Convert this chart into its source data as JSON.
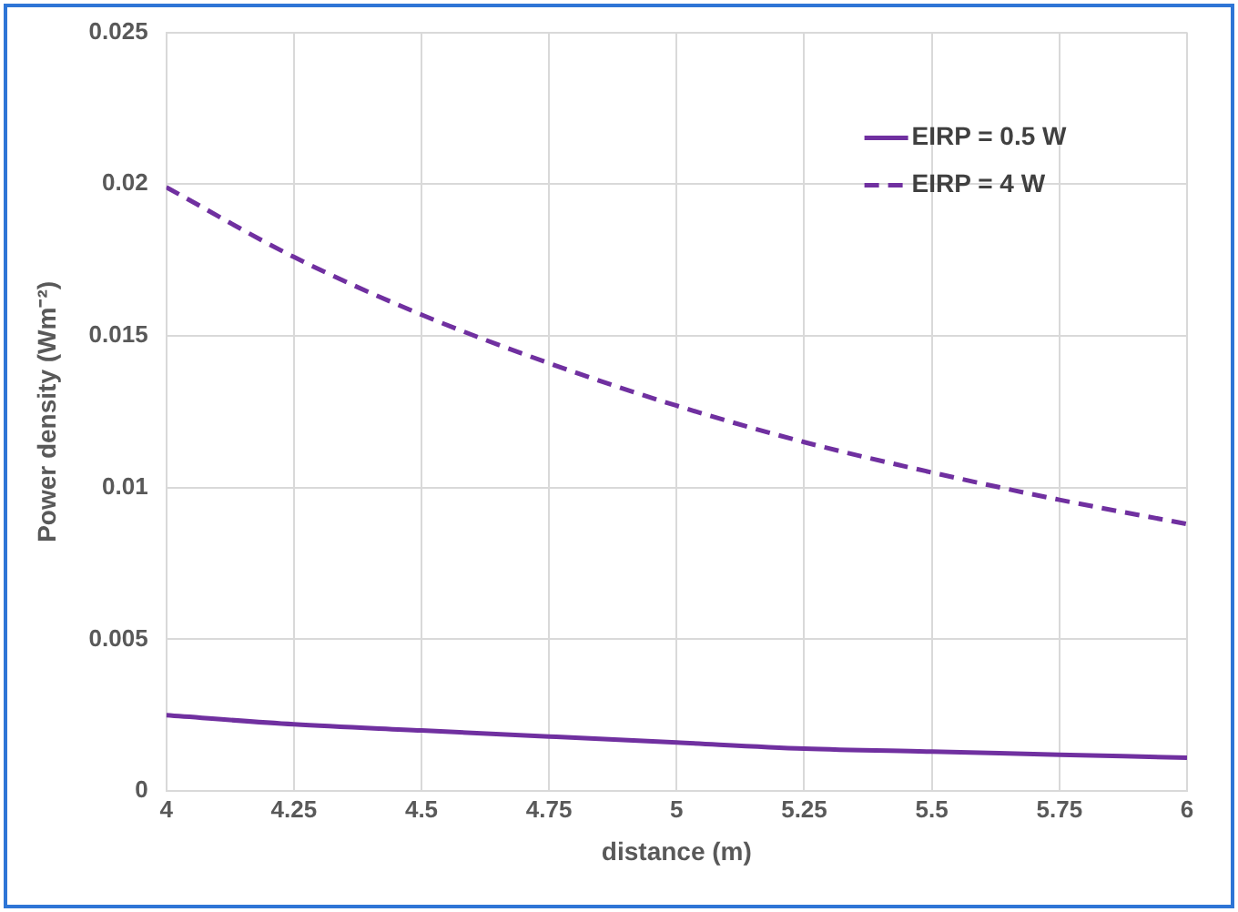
{
  "chart_data": {
    "type": "line",
    "xlabel": "distance (m)",
    "ylabel": "Power density (Wm⁻²)",
    "x": [
      4,
      4.25,
      4.5,
      4.75,
      5,
      5.25,
      5.5,
      5.75,
      6
    ],
    "series": [
      {
        "name": "EIRP = 0.5 W",
        "color": "#7030a0",
        "line_style": "solid",
        "values": [
          0.0025,
          0.0022,
          0.002,
          0.0018,
          0.0016,
          0.0014,
          0.0013,
          0.0012,
          0.0011
        ]
      },
      {
        "name": "EIRP = 4 W",
        "color": "#7030a0",
        "line_style": "dashed",
        "values": [
          0.0199,
          0.0176,
          0.0157,
          0.0141,
          0.0127,
          0.0115,
          0.0105,
          0.0096,
          0.0088
        ]
      }
    ],
    "xlim": [
      4,
      6
    ],
    "xticks": [
      4,
      4.25,
      4.5,
      4.75,
      5,
      5.25,
      5.5,
      5.75,
      6
    ],
    "ylim": [
      0,
      0.025
    ],
    "yticks": [
      0,
      0.005,
      0.01,
      0.015,
      0.02,
      0.025
    ],
    "grid": true,
    "legend": "top right",
    "marker": "none"
  }
}
